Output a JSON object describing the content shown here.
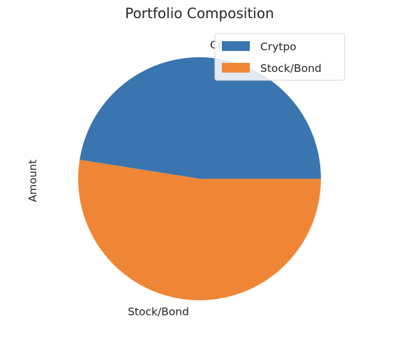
{
  "chart_data": {
    "type": "pie",
    "title": "Portfolio Composition",
    "ylabel": "Amount",
    "categories": [
      "Crytpo",
      "Stock/Bond"
    ],
    "values": [
      47.5,
      52.5
    ],
    "colors": [
      "#3a75af",
      "#ef8636"
    ],
    "legend": {
      "placement": "upper-right",
      "entries": [
        "Crytpo",
        "Stock/Bond"
      ]
    },
    "start_angle_deg": 0,
    "direction": "counterclockwise"
  }
}
